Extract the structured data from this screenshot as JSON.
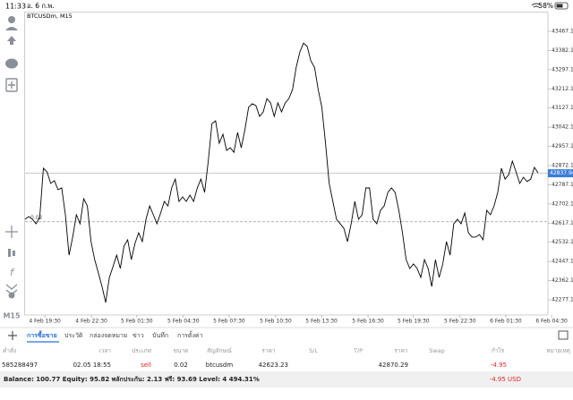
{
  "status_bar": {
    "time": "11:33",
    "date": "อ. 6 ก.พ.",
    "battery": "58%"
  },
  "chart_data": {
    "type": "line",
    "title": "BTCUSDm, M15",
    "color": "#000000",
    "values": [
      42634,
      42646,
      42634,
      42614,
      42642,
      42860,
      42844,
      42793,
      42805,
      42765,
      42773,
      42654,
      42475,
      42555,
      42654,
      42614,
      42725,
      42693,
      42535,
      42455,
      42396,
      42336,
      42265,
      42376,
      42424,
      42475,
      42416,
      42515,
      42543,
      42455,
      42527,
      42574,
      42535,
      42634,
      42693,
      42654,
      42614,
      42662,
      42713,
      42693,
      42773,
      42812,
      42713,
      42733,
      42713,
      42741,
      42713,
      42773,
      42812,
      42753,
      42892,
      43058,
      43070,
      42971,
      43011,
      42939,
      42951,
      42931,
      43019,
      42951,
      43031,
      43130,
      43146,
      43138,
      43090,
      43110,
      43169,
      43150,
      43090,
      43150,
      43110,
      43150,
      43169,
      43209,
      43308,
      43376,
      43415,
      43400,
      43336,
      43308,
      43209,
      43130,
      42971,
      42793,
      42713,
      42634,
      42614,
      42594,
      42535,
      42614,
      42713,
      42634,
      42654,
      42773,
      42773,
      42634,
      42614,
      42674,
      42693,
      42753,
      42773,
      42753,
      42674,
      42574,
      42455,
      42416,
      42436,
      42416,
      42376,
      42455,
      42416,
      42336,
      42455,
      42376,
      42436,
      42535,
      42475,
      42614,
      42634,
      42614,
      42662,
      42574,
      42555,
      42555,
      42566,
      42543,
      42674,
      42654,
      42693,
      42753,
      42860,
      42812,
      42832,
      42892,
      42844,
      42793,
      42820,
      42801,
      42812,
      42864,
      42840
    ],
    "xlim": [
      0,
      142.7
    ],
    "xticks": [
      {
        "value": 5.4,
        "label": "4 Feb 19:30"
      },
      {
        "value": 18.1,
        "label": "4 Feb 22:30"
      },
      {
        "value": 30.5,
        "label": "5 Feb 01:30"
      },
      {
        "value": 43.2,
        "label": "5 Feb 04:30"
      },
      {
        "value": 55.7,
        "label": "5 Feb 07:30"
      },
      {
        "value": 68.4,
        "label": "5 Feb 10:30"
      },
      {
        "value": 80.9,
        "label": "5 Feb 13:30"
      },
      {
        "value": 93.6,
        "label": "5 Feb 16:30"
      },
      {
        "value": 106.0,
        "label": "5 Feb 19:30"
      },
      {
        "value": 118.7,
        "label": "5 Feb 22:30"
      },
      {
        "value": 131.2,
        "label": "6 Feb 01:30"
      },
      {
        "value": 143.7,
        "label": "6 Feb 04:30"
      }
    ],
    "ylim": [
      42209.7,
      43550.4
    ],
    "yticks": [
      {
        "value": 43467.1,
        "label": "43467.10"
      },
      {
        "value": 43382.1,
        "label": "43382.10"
      },
      {
        "value": 43297.1,
        "label": "43297.10"
      },
      {
        "value": 43212.1,
        "label": "43212.10"
      },
      {
        "value": 43127.1,
        "label": "43127.10"
      },
      {
        "value": 43042.1,
        "label": "43042.10"
      },
      {
        "value": 42957.1,
        "label": "42957.10"
      },
      {
        "value": 42872.1,
        "label": "42872.10"
      },
      {
        "value": 42787.1,
        "label": "42787.10"
      },
      {
        "value": 42702.1,
        "label": "42702.10"
      },
      {
        "value": 42617.1,
        "label": "42617.10"
      },
      {
        "value": 42532.1,
        "label": "42532.10"
      },
      {
        "value": 42447.1,
        "label": "42447.10"
      },
      {
        "value": 42362.1,
        "label": "42362.10"
      },
      {
        "value": 42277.1,
        "label": "42277.10"
      }
    ],
    "current_price": {
      "value": 42837.94,
      "label": "42837.94"
    },
    "position_line": {
      "value": 42623.23,
      "label": "0.02"
    },
    "timeframe": "M15"
  },
  "tabs": [
    "การซื้อขาย",
    "ประวัติ",
    "กล่องจดหมาย",
    "ข่าว",
    "บันทึก",
    "การตั้งค่า"
  ],
  "table": {
    "header": [
      "คำสั่ง",
      "เวลา",
      "ประเภท",
      "ขนาด",
      "สัญลักษณ์",
      "ราคา",
      "S/L",
      "T/P",
      "ราคา",
      "Swap",
      "กำไร",
      "หมายเหตุ"
    ],
    "rows": [
      {
        "order": "585288497",
        "time": "02.05 18:55",
        "type": "sell",
        "volume": "0.02",
        "symbol": "btcusdm",
        "price": "42623.23",
        "price_current": "42870.29",
        "profit": "-4.95"
      }
    ]
  },
  "balance": {
    "text": "Balance: 100.77 Equity: 95.82 พลักประกัน: 2.13 ฟรี: 93.69 Level: 4 494.31%",
    "profit": "-4.95 USD"
  }
}
